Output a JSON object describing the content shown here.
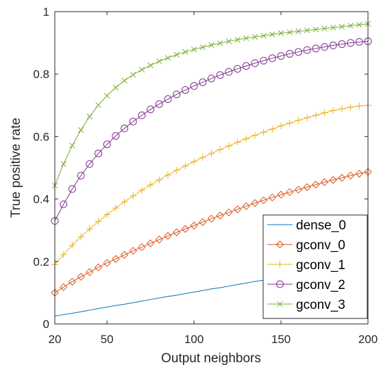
{
  "chart_data": {
    "type": "line",
    "title": "",
    "xlabel": "Output neighbors",
    "ylabel": "True positive rate",
    "xlim": [
      20,
      200
    ],
    "ylim": [
      0,
      1
    ],
    "grid": false,
    "legend_position": "bottom-right",
    "x_ticks": [
      20,
      50,
      100,
      150,
      200
    ],
    "x_tick_labels": [
      "20",
      "50",
      "100",
      "150",
      "200"
    ],
    "y_ticks": [
      0,
      0.2,
      0.4,
      0.6,
      0.8,
      1
    ],
    "y_tick_labels": [
      "0",
      "0.2",
      "0.4",
      "0.6",
      "0.8",
      "1"
    ],
    "x": [
      20,
      25,
      30,
      35,
      40,
      45,
      50,
      55,
      60,
      65,
      70,
      75,
      80,
      85,
      90,
      95,
      100,
      105,
      110,
      115,
      120,
      125,
      130,
      135,
      140,
      145,
      150,
      155,
      160,
      165,
      170,
      175,
      180,
      185,
      190,
      195,
      200
    ],
    "series": [
      {
        "name": "dense_0",
        "color": "#0072BD",
        "marker": "none",
        "values": [
          0.025,
          0.03,
          0.034,
          0.039,
          0.044,
          0.049,
          0.054,
          0.059,
          0.063,
          0.068,
          0.073,
          0.078,
          0.083,
          0.088,
          0.092,
          0.097,
          0.102,
          0.107,
          0.112,
          0.116,
          0.121,
          0.126,
          0.131,
          0.136,
          0.14,
          0.145,
          0.15,
          0.155,
          0.159,
          0.164,
          0.169,
          0.173,
          0.178,
          0.183,
          0.187,
          0.192,
          0.197
        ]
      },
      {
        "name": "gconv_0",
        "color": "#D95319",
        "marker": "diamond",
        "values": [
          0.1,
          0.118,
          0.135,
          0.151,
          0.166,
          0.181,
          0.195,
          0.208,
          0.221,
          0.234,
          0.246,
          0.258,
          0.27,
          0.282,
          0.293,
          0.304,
          0.315,
          0.326,
          0.337,
          0.347,
          0.357,
          0.367,
          0.377,
          0.387,
          0.396,
          0.405,
          0.414,
          0.422,
          0.43,
          0.438,
          0.446,
          0.454,
          0.461,
          0.468,
          0.475,
          0.481,
          0.487
        ]
      },
      {
        "name": "gconv_1",
        "color": "#EDB120",
        "marker": "plus",
        "values": [
          0.19,
          0.222,
          0.252,
          0.279,
          0.304,
          0.328,
          0.35,
          0.371,
          0.391,
          0.41,
          0.428,
          0.445,
          0.461,
          0.477,
          0.492,
          0.506,
          0.52,
          0.533,
          0.546,
          0.558,
          0.57,
          0.582,
          0.593,
          0.604,
          0.614,
          0.624,
          0.634,
          0.643,
          0.652,
          0.66,
          0.668,
          0.676,
          0.683,
          0.689,
          0.694,
          0.698,
          0.7
        ]
      },
      {
        "name": "gconv_2",
        "color": "#7E2F8E",
        "marker": "circle",
        "values": [
          0.33,
          0.383,
          0.432,
          0.475,
          0.512,
          0.546,
          0.575,
          0.602,
          0.626,
          0.648,
          0.668,
          0.687,
          0.704,
          0.72,
          0.735,
          0.749,
          0.762,
          0.774,
          0.786,
          0.797,
          0.807,
          0.817,
          0.826,
          0.835,
          0.843,
          0.851,
          0.858,
          0.865,
          0.871,
          0.877,
          0.882,
          0.887,
          0.892,
          0.896,
          0.9,
          0.903,
          0.905
        ]
      },
      {
        "name": "gconv_3",
        "color": "#77AC30",
        "marker": "x",
        "values": [
          0.443,
          0.512,
          0.571,
          0.621,
          0.664,
          0.701,
          0.731,
          0.757,
          0.779,
          0.798,
          0.814,
          0.828,
          0.841,
          0.852,
          0.862,
          0.871,
          0.879,
          0.886,
          0.893,
          0.899,
          0.905,
          0.91,
          0.915,
          0.919,
          0.923,
          0.927,
          0.931,
          0.934,
          0.937,
          0.94,
          0.943,
          0.946,
          0.949,
          0.952,
          0.955,
          0.958,
          0.961
        ]
      }
    ]
  }
}
